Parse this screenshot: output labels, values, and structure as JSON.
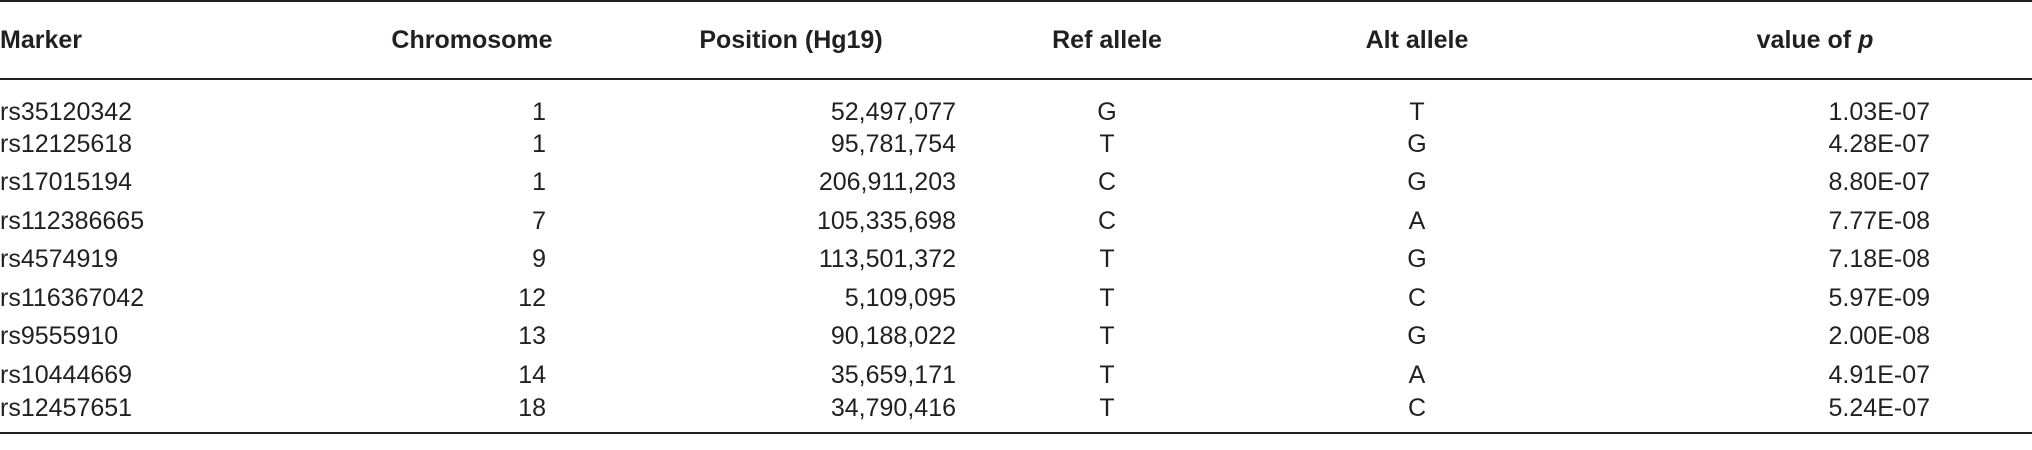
{
  "table": {
    "headers": {
      "marker": "Marker",
      "chromosome": "Chromosome",
      "position": "Position (Hg19)",
      "ref_allele": "Ref allele",
      "alt_allele": "Alt allele",
      "pvalue_prefix": "value of ",
      "pvalue_italic": "p"
    },
    "rows": [
      {
        "marker": "rs35120342",
        "chromosome": "1",
        "position": "52,497,077",
        "ref": "G",
        "alt": "T",
        "pvalue": "1.03E-07"
      },
      {
        "marker": "rs12125618",
        "chromosome": "1",
        "position": "95,781,754",
        "ref": "T",
        "alt": "G",
        "pvalue": "4.28E-07"
      },
      {
        "marker": "rs17015194",
        "chromosome": "1",
        "position": "206,911,203",
        "ref": "C",
        "alt": "G",
        "pvalue": "8.80E-07"
      },
      {
        "marker": "rs112386665",
        "chromosome": "7",
        "position": "105,335,698",
        "ref": "C",
        "alt": "A",
        "pvalue": "7.77E-08"
      },
      {
        "marker": "rs4574919",
        "chromosome": "9",
        "position": "113,501,372",
        "ref": "T",
        "alt": "G",
        "pvalue": "7.18E-08"
      },
      {
        "marker": "rs116367042",
        "chromosome": "12",
        "position": "5,109,095",
        "ref": "T",
        "alt": "C",
        "pvalue": "5.97E-09"
      },
      {
        "marker": "rs9555910",
        "chromosome": "13",
        "position": "90,188,022",
        "ref": "T",
        "alt": "G",
        "pvalue": "2.00E-08"
      },
      {
        "marker": "rs10444669",
        "chromosome": "14",
        "position": "35,659,171",
        "ref": "T",
        "alt": "A",
        "pvalue": "4.91E-07"
      },
      {
        "marker": "rs12457651",
        "chromosome": "18",
        "position": "34,790,416",
        "ref": "T",
        "alt": "C",
        "pvalue": "5.24E-07"
      }
    ]
  }
}
